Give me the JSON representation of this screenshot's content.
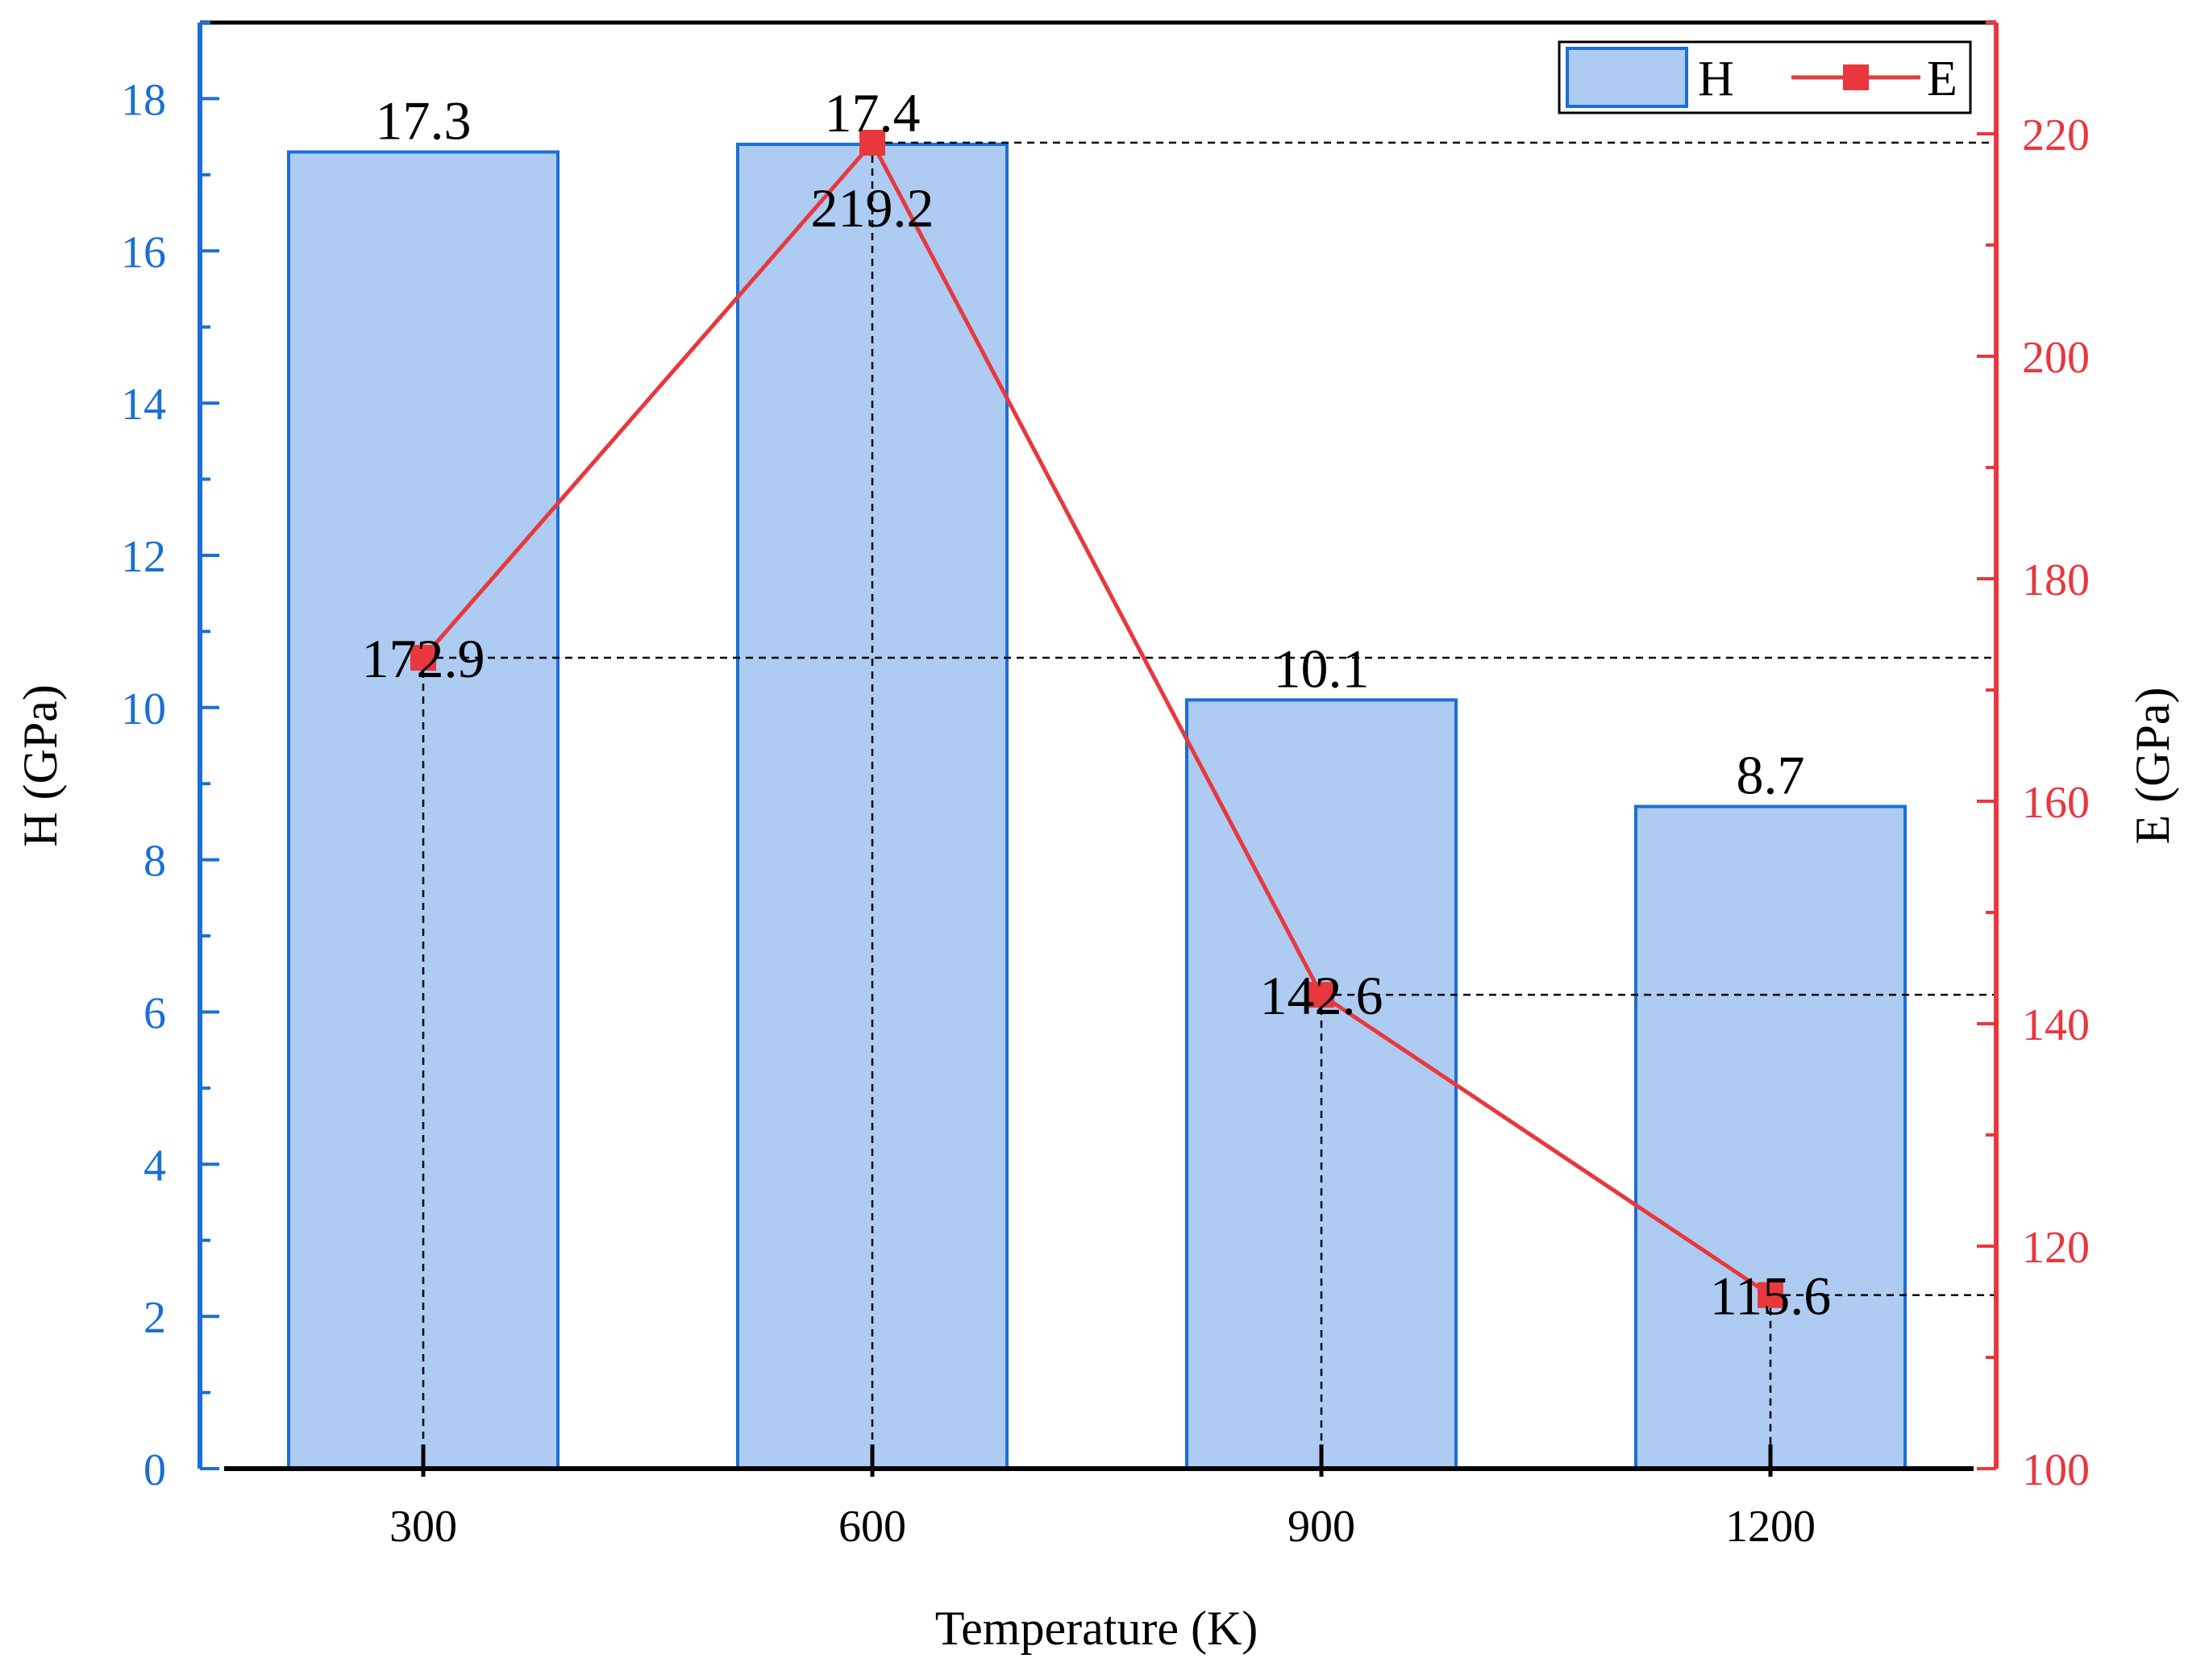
{
  "chart_data": {
    "type": "bar",
    "categories": [
      "300",
      "600",
      "900",
      "1200"
    ],
    "series": [
      {
        "name": "H",
        "type": "bar",
        "axis": "left",
        "values": [
          17.3,
          17.4,
          10.1,
          8.7
        ],
        "labels": [
          "17.3",
          "17.4",
          "10.1",
          "8.7"
        ],
        "color": "#aecbf2",
        "edge_color": "#1a6fd6"
      },
      {
        "name": "E",
        "type": "line",
        "axis": "right",
        "values": [
          172.9,
          219.2,
          142.6,
          115.6
        ],
        "labels": [
          "172.9",
          "219.2",
          "142.6",
          "115.6"
        ],
        "color": "#e8383d",
        "marker": "square"
      }
    ],
    "xlabel": "Temperature (K)",
    "ylabel": "H (GPa)",
    "y2label": "E (GPa)",
    "ylim": [
      0,
      19
    ],
    "y2lim": [
      100,
      230
    ],
    "yticks": [
      "0",
      "2",
      "4",
      "6",
      "8",
      "10",
      "12",
      "14",
      "16",
      "18"
    ],
    "y2ticks": [
      "100",
      "120",
      "140",
      "160",
      "180",
      "200",
      "220"
    ],
    "legend": "top-right",
    "grid": false,
    "reference_lines": "dashed",
    "left_axis_color": "#1a6fd6",
    "right_axis_color": "#e8383d"
  }
}
